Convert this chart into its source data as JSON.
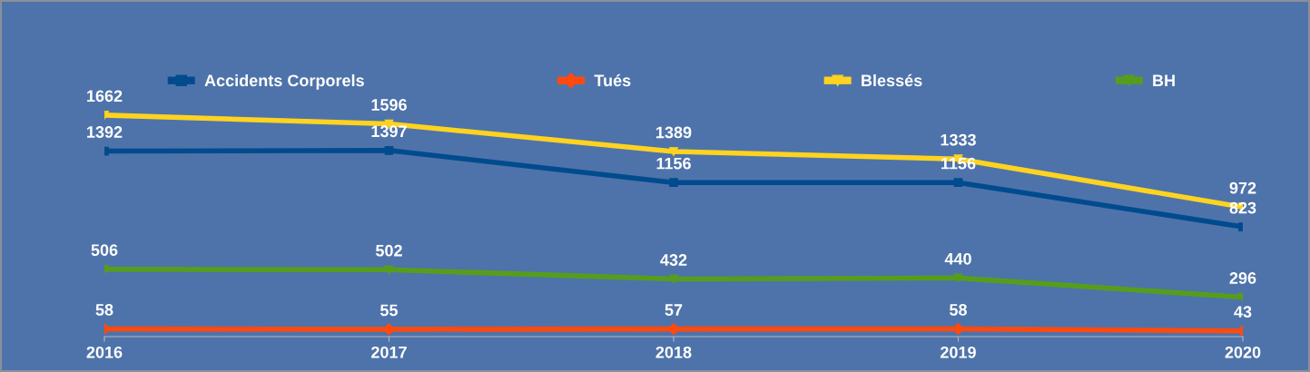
{
  "chart_data": {
    "type": "line",
    "categories": [
      "2016",
      "2017",
      "2018",
      "2019",
      "2020"
    ],
    "series": [
      {
        "name": "Accidents Corporels",
        "color": "#004b8d",
        "marker": "square",
        "values": [
          1392,
          1397,
          1156,
          1156,
          823
        ]
      },
      {
        "name": "Tués",
        "color": "#ff4a0f",
        "marker": "diamond",
        "values": [
          58,
          55,
          57,
          58,
          43
        ]
      },
      {
        "name": "Blessés",
        "color": "#ffd320",
        "marker": "triangle",
        "values": [
          1662,
          1596,
          1389,
          1333,
          972
        ]
      },
      {
        "name": "BH",
        "color": "#579d1c",
        "marker": "triangle",
        "values": [
          506,
          502,
          432,
          440,
          296
        ]
      }
    ],
    "tick_labels": "x",
    "data_labels": true,
    "legend": "top",
    "grid": false,
    "line_style": "solid"
  }
}
